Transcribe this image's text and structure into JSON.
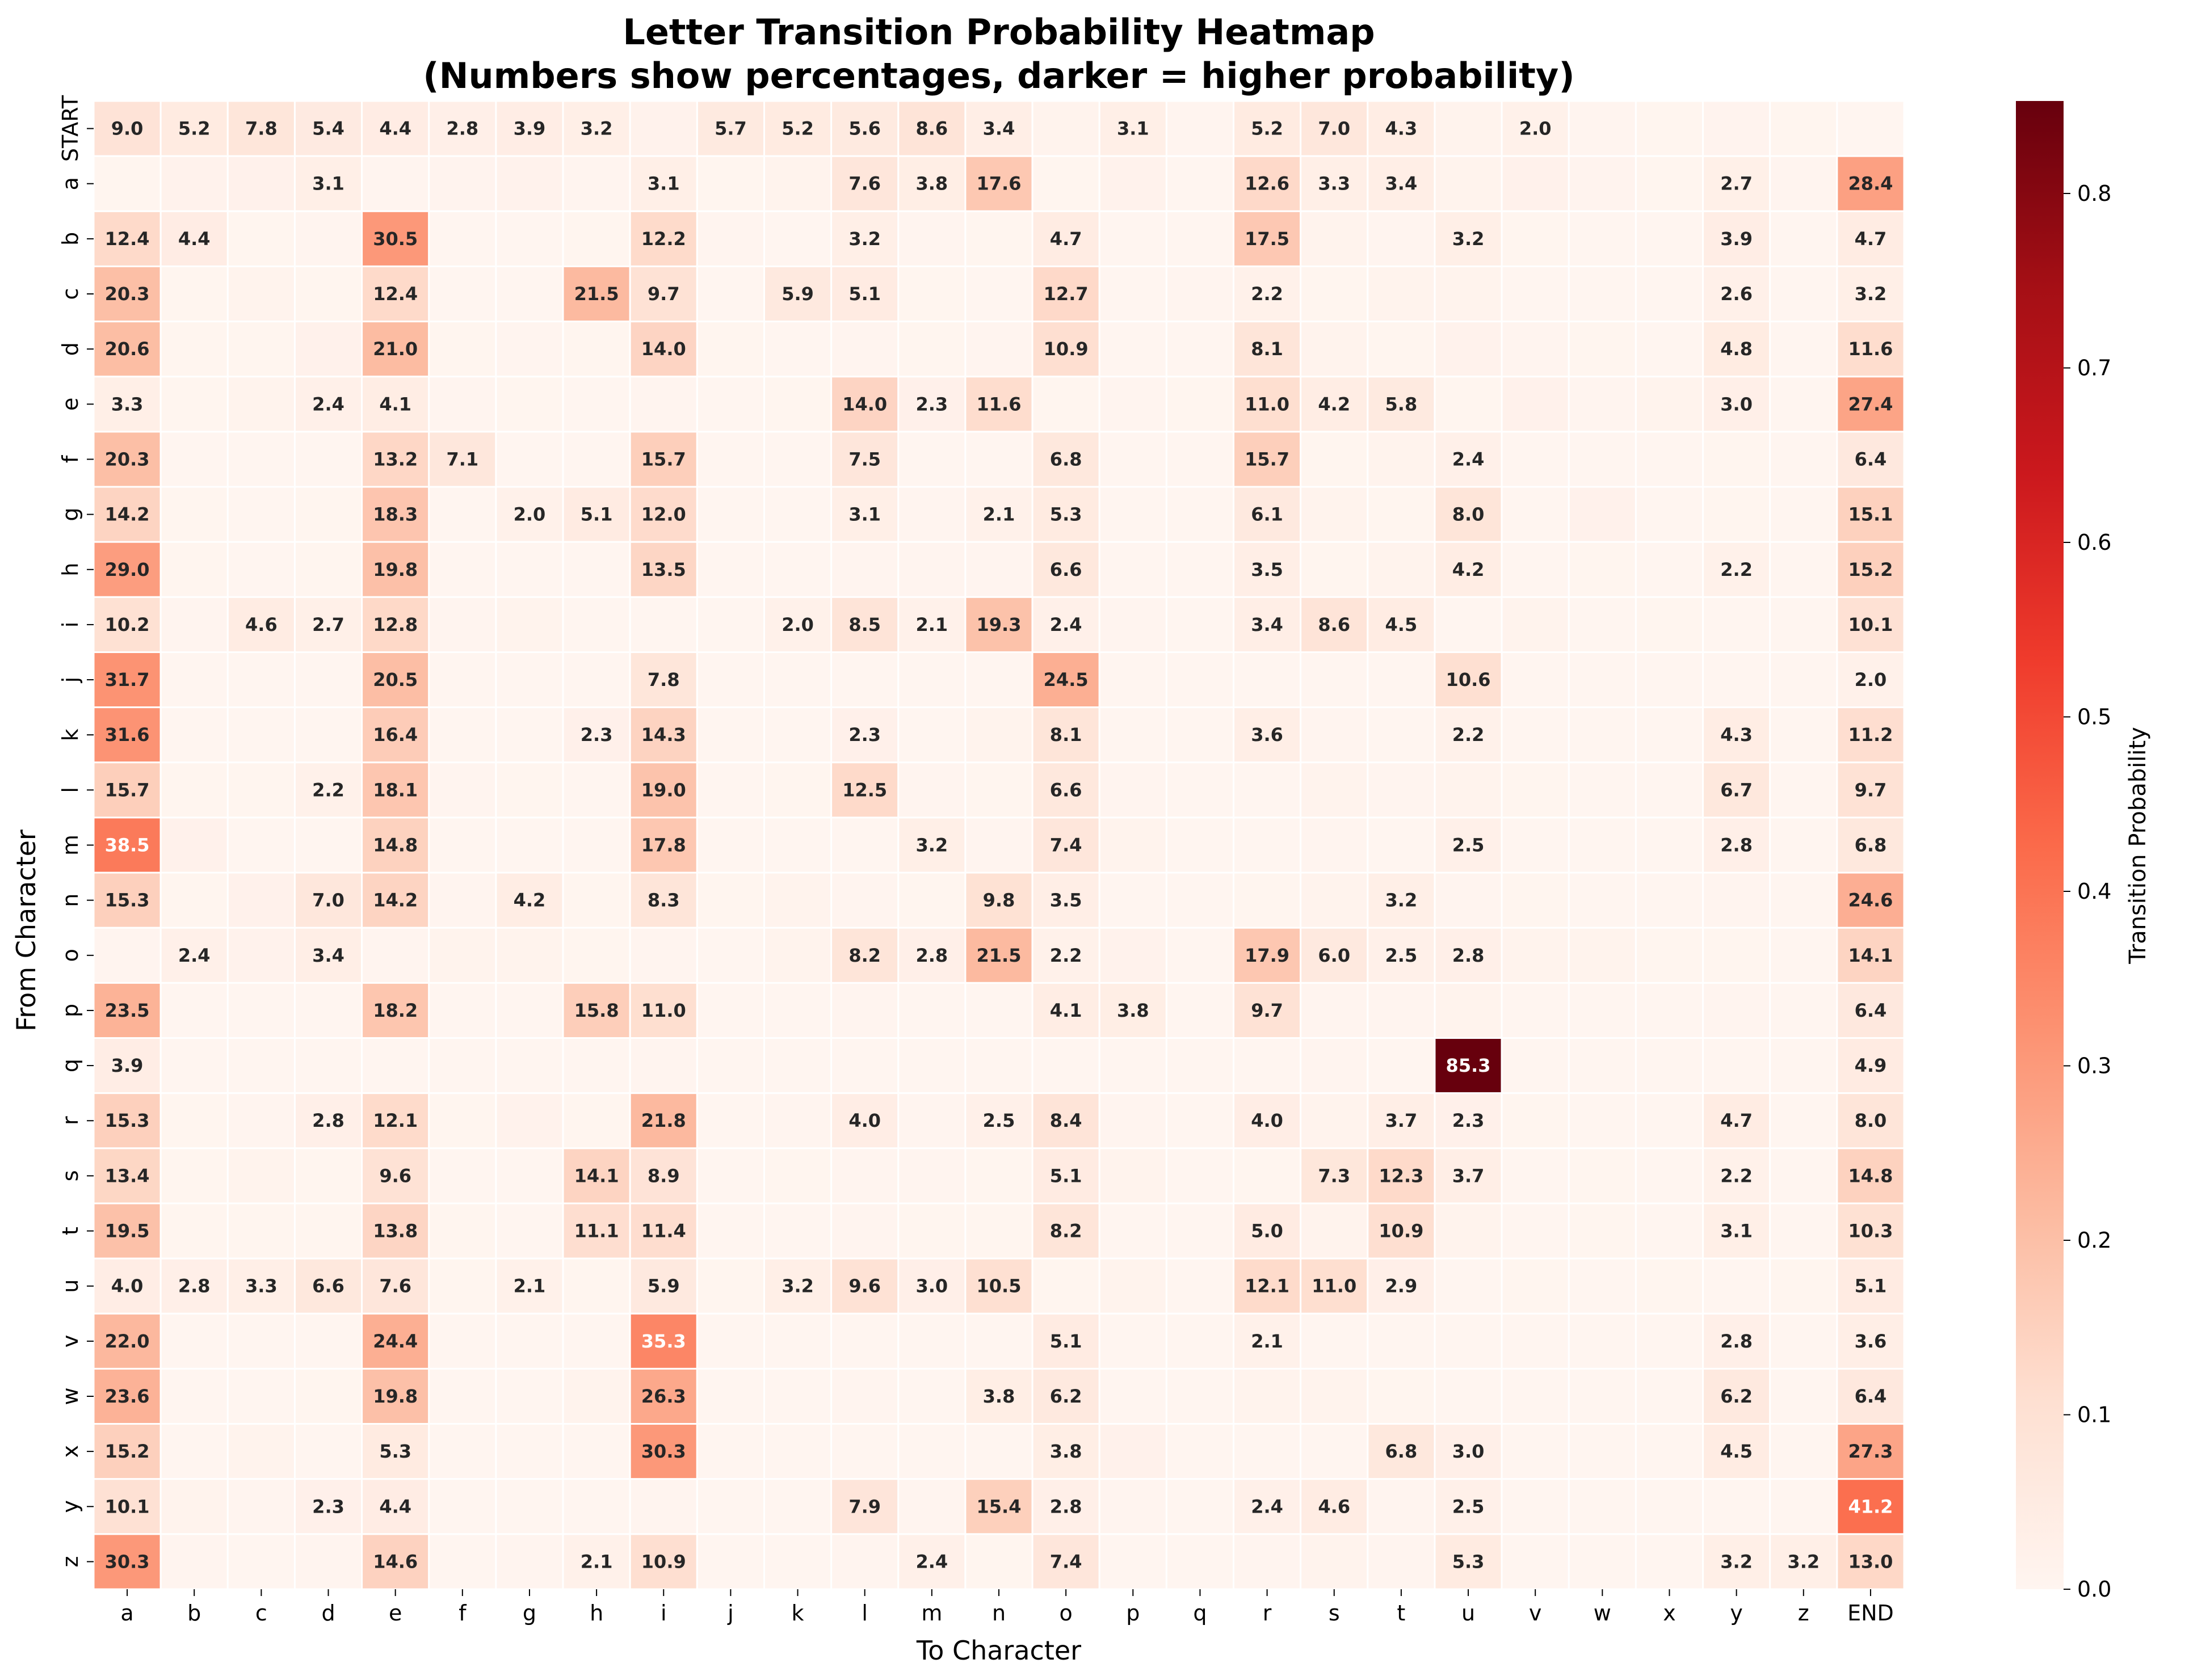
{
  "chart_data": {
    "type": "heatmap",
    "title": [
      "Letter Transition Probability Heatmap",
      "(Numbers show percentages, darker = higher probability)"
    ],
    "xlabel": "To Character",
    "ylabel": "From Character",
    "x_categories": [
      "a",
      "b",
      "c",
      "d",
      "e",
      "f",
      "g",
      "h",
      "i",
      "j",
      "k",
      "l",
      "m",
      "n",
      "o",
      "p",
      "q",
      "r",
      "s",
      "t",
      "u",
      "v",
      "w",
      "x",
      "y",
      "z",
      "END"
    ],
    "y_categories": [
      "START",
      "a",
      "b",
      "c",
      "d",
      "e",
      "f",
      "g",
      "h",
      "i",
      "j",
      "k",
      "l",
      "m",
      "n",
      "o",
      "p",
      "q",
      "r",
      "s",
      "t",
      "u",
      "v",
      "w",
      "x",
      "y",
      "z"
    ],
    "values": [
      [
        9.0,
        5.2,
        7.8,
        5.4,
        4.4,
        2.8,
        3.9,
        3.2,
        1.5,
        5.7,
        5.2,
        5.6,
        8.6,
        3.4,
        1.2,
        3.1,
        0.5,
        5.2,
        7.0,
        4.3,
        1.0,
        2.0,
        0.5,
        0.2,
        0.8,
        0.2,
        0.0
      ],
      [
        0.2,
        1.5,
        1.8,
        3.1,
        0.5,
        0.8,
        1.5,
        0.5,
        3.1,
        0.2,
        1.0,
        7.6,
        3.8,
        17.6,
        0.2,
        1.5,
        0.0,
        12.6,
        3.3,
        3.4,
        1.0,
        1.8,
        0.8,
        0.2,
        2.7,
        0.5,
        28.4
      ],
      [
        12.4,
        4.4,
        0.2,
        0.5,
        30.5,
        0.0,
        0.0,
        0.2,
        12.2,
        0.5,
        0.0,
        3.2,
        0.5,
        0.2,
        4.7,
        0.0,
        0.0,
        17.5,
        1.0,
        0.5,
        3.2,
        0.2,
        0.0,
        0.0,
        3.9,
        0.0,
        4.7
      ],
      [
        20.3,
        0.2,
        1.0,
        0.2,
        12.4,
        0.0,
        0.0,
        21.5,
        9.7,
        0.0,
        5.9,
        5.1,
        0.2,
        0.0,
        12.7,
        0.0,
        0.5,
        2.2,
        0.2,
        1.0,
        1.0,
        0.0,
        0.0,
        0.0,
        2.6,
        0.0,
        3.2
      ],
      [
        20.6,
        0.2,
        0.2,
        1.8,
        21.0,
        0.2,
        0.5,
        0.2,
        14.0,
        0.2,
        0.0,
        0.5,
        0.2,
        0.5,
        10.9,
        0.0,
        0.0,
        8.1,
        1.0,
        0.2,
        1.5,
        0.5,
        0.2,
        0.0,
        4.8,
        0.0,
        11.6
      ],
      [
        3.3,
        0.2,
        1.0,
        2.4,
        4.1,
        0.5,
        0.2,
        0.0,
        0.5,
        0.0,
        0.2,
        14.0,
        2.3,
        11.6,
        0.2,
        0.5,
        0.2,
        11.0,
        4.2,
        5.8,
        0.2,
        1.8,
        0.5,
        1.0,
        3.0,
        0.0,
        27.4
      ],
      [
        20.3,
        0.0,
        0.0,
        0.0,
        13.2,
        7.1,
        0.0,
        0.0,
        15.7,
        0.0,
        0.0,
        7.5,
        0.0,
        0.0,
        6.8,
        0.0,
        0.0,
        15.7,
        0.2,
        1.0,
        2.4,
        0.0,
        0.0,
        0.0,
        0.2,
        0.0,
        6.4
      ],
      [
        14.2,
        0.2,
        0.0,
        0.2,
        18.3,
        0.0,
        2.0,
        5.1,
        12.0,
        0.0,
        0.0,
        3.1,
        0.5,
        2.1,
        5.3,
        0.0,
        0.0,
        6.1,
        1.0,
        0.2,
        8.0,
        0.0,
        1.8,
        0.0,
        0.2,
        0.0,
        15.1
      ],
      [
        29.0,
        0.2,
        0.0,
        0.2,
        19.8,
        0.0,
        0.0,
        0.0,
        13.5,
        0.0,
        0.0,
        0.5,
        0.5,
        0.5,
        6.6,
        0.0,
        0.0,
        3.5,
        0.2,
        1.0,
        4.2,
        0.0,
        0.2,
        0.0,
        2.2,
        0.0,
        15.2
      ],
      [
        10.2,
        0.5,
        4.6,
        2.7,
        12.8,
        0.5,
        1.0,
        0.0,
        0.0,
        0.0,
        2.0,
        8.5,
        2.1,
        19.3,
        2.4,
        0.5,
        0.0,
        3.4,
        8.6,
        4.5,
        0.0,
        1.0,
        0.0,
        0.2,
        0.0,
        0.0,
        10.1
      ],
      [
        31.7,
        0.0,
        0.0,
        0.0,
        20.5,
        0.0,
        0.0,
        0.0,
        7.8,
        0.0,
        0.0,
        0.0,
        0.0,
        0.0,
        24.5,
        0.0,
        0.0,
        0.0,
        0.0,
        0.0,
        10.6,
        0.0,
        0.0,
        0.0,
        0.0,
        0.0,
        2.0
      ],
      [
        31.6,
        0.0,
        0.0,
        0.0,
        16.4,
        0.0,
        0.0,
        2.3,
        14.3,
        0.0,
        0.0,
        2.3,
        0.0,
        1.0,
        8.1,
        0.0,
        0.0,
        3.6,
        0.5,
        0.0,
        2.2,
        0.0,
        0.0,
        0.0,
        4.3,
        0.0,
        11.2
      ],
      [
        15.7,
        0.2,
        0.2,
        2.2,
        18.1,
        0.5,
        0.2,
        0.0,
        19.0,
        0.0,
        0.2,
        12.5,
        0.5,
        0.2,
        6.6,
        0.5,
        0.0,
        0.0,
        1.0,
        0.5,
        1.0,
        0.2,
        0.0,
        0.0,
        6.7,
        0.0,
        9.7
      ],
      [
        38.5,
        1.8,
        0.0,
        0.0,
        14.8,
        0.0,
        0.0,
        0.0,
        17.8,
        0.0,
        0.0,
        0.0,
        3.2,
        0.5,
        7.4,
        1.0,
        0.0,
        0.0,
        0.5,
        0.0,
        2.5,
        0.0,
        0.0,
        0.0,
        2.8,
        0.0,
        6.8
      ],
      [
        15.3,
        0.2,
        1.8,
        7.0,
        14.2,
        0.5,
        4.2,
        0.2,
        8.3,
        0.2,
        1.0,
        0.5,
        0.2,
        9.8,
        3.5,
        0.0,
        0.0,
        0.2,
        1.0,
        3.2,
        0.5,
        0.2,
        0.0,
        0.0,
        0.5,
        0.0,
        24.6
      ],
      [
        0.5,
        2.4,
        1.5,
        3.4,
        0.5,
        1.0,
        1.0,
        0.2,
        0.5,
        0.0,
        1.0,
        8.2,
        2.8,
        21.5,
        2.2,
        1.5,
        0.0,
        17.9,
        6.0,
        2.5,
        2.8,
        1.0,
        1.0,
        0.2,
        0.2,
        0.0,
        14.1
      ],
      [
        23.5,
        0.0,
        0.0,
        0.0,
        18.2,
        0.0,
        0.0,
        15.8,
        11.0,
        0.0,
        0.0,
        0.5,
        0.0,
        0.0,
        4.1,
        3.8,
        0.0,
        9.7,
        0.5,
        0.5,
        1.0,
        0.0,
        0.0,
        0.0,
        0.5,
        0.0,
        6.4
      ],
      [
        3.9,
        0.0,
        0.0,
        0.0,
        0.0,
        0.0,
        0.0,
        0.0,
        0.5,
        0.0,
        0.0,
        0.0,
        0.0,
        0.0,
        0.0,
        0.0,
        0.0,
        0.0,
        0.5,
        0.0,
        85.3,
        0.0,
        0.0,
        0.0,
        0.0,
        0.0,
        4.9
      ],
      [
        15.3,
        0.2,
        0.5,
        2.8,
        12.1,
        0.2,
        1.5,
        0.2,
        21.8,
        0.0,
        0.5,
        4.0,
        0.5,
        2.5,
        8.4,
        0.5,
        0.0,
        4.0,
        1.0,
        3.7,
        2.3,
        0.2,
        0.0,
        0.0,
        4.7,
        0.0,
        8.0
      ],
      [
        13.4,
        0.2,
        1.0,
        0.2,
        9.6,
        0.0,
        0.0,
        14.1,
        8.9,
        0.0,
        0.2,
        0.5,
        0.5,
        0.2,
        5.1,
        1.0,
        0.0,
        0.2,
        7.3,
        12.3,
        3.7,
        0.0,
        0.2,
        0.0,
        2.2,
        0.0,
        14.8
      ],
      [
        19.5,
        0.2,
        0.2,
        0.2,
        13.8,
        0.2,
        0.0,
        11.1,
        11.4,
        0.0,
        0.0,
        0.5,
        0.2,
        0.2,
        8.2,
        0.0,
        0.0,
        5.0,
        1.0,
        10.9,
        1.0,
        0.0,
        0.2,
        0.0,
        3.1,
        0.0,
        10.3
      ],
      [
        4.0,
        2.8,
        3.3,
        6.6,
        7.6,
        0.2,
        2.1,
        0.2,
        5.9,
        0.2,
        3.2,
        9.6,
        3.0,
        10.5,
        0.2,
        1.0,
        0.0,
        12.1,
        11.0,
        2.9,
        0.0,
        0.2,
        0.0,
        0.2,
        0.0,
        0.2,
        5.1
      ],
      [
        22.0,
        0.0,
        0.0,
        0.0,
        24.4,
        0.0,
        0.0,
        0.0,
        35.3,
        0.0,
        0.0,
        0.0,
        0.0,
        0.0,
        5.1,
        0.0,
        0.0,
        2.1,
        0.0,
        0.0,
        0.0,
        0.0,
        0.0,
        0.0,
        2.8,
        0.0,
        3.6
      ],
      [
        23.6,
        0.0,
        0.0,
        0.2,
        19.8,
        0.0,
        0.0,
        1.0,
        26.3,
        0.0,
        0.0,
        0.5,
        0.0,
        3.8,
        6.2,
        0.0,
        0.0,
        1.0,
        1.0,
        0.2,
        0.0,
        0.0,
        0.0,
        0.0,
        6.2,
        0.0,
        6.4
      ],
      [
        15.2,
        0.0,
        1.0,
        0.0,
        5.3,
        0.0,
        0.0,
        0.0,
        30.3,
        0.0,
        0.0,
        0.0,
        0.0,
        0.0,
        3.8,
        1.8,
        0.0,
        0.0,
        0.0,
        6.8,
        3.0,
        0.0,
        0.0,
        0.0,
        4.5,
        0.0,
        27.3
      ],
      [
        10.1,
        1.0,
        0.5,
        2.3,
        4.4,
        0.0,
        0.0,
        0.0,
        0.5,
        0.0,
        0.0,
        7.9,
        0.5,
        15.4,
        2.8,
        0.5,
        0.0,
        2.4,
        4.6,
        0.5,
        2.5,
        0.0,
        0.0,
        0.0,
        0.0,
        0.0,
        41.2
      ],
      [
        30.3,
        0.5,
        0.0,
        0.5,
        14.6,
        0.0,
        0.5,
        2.1,
        10.9,
        0.0,
        0.0,
        0.5,
        2.4,
        0.2,
        7.4,
        0.0,
        0.0,
        0.5,
        1.0,
        0.5,
        5.3,
        0.0,
        0.0,
        0.0,
        3.2,
        3.2,
        13.0
      ]
    ],
    "label_threshold": 2.0,
    "value_range": [
      0.0,
      0.853
    ],
    "colormap": "Reds",
    "colorbar": {
      "label": "Transition Probability",
      "ticks": [
        "0.0",
        "0.1",
        "0.2",
        "0.3",
        "0.4",
        "0.5",
        "0.6",
        "0.7",
        "0.8"
      ]
    },
    "colors": {
      "stops": [
        "#fff5f0",
        "#fee0d2",
        "#fcbba1",
        "#fc9272",
        "#fb6a4a",
        "#ef3b2c",
        "#cb181d",
        "#a50f15",
        "#67000d"
      ],
      "grid_line": "#ffffff",
      "label_dark": "#262626",
      "label_light": "#ffffff"
    }
  }
}
